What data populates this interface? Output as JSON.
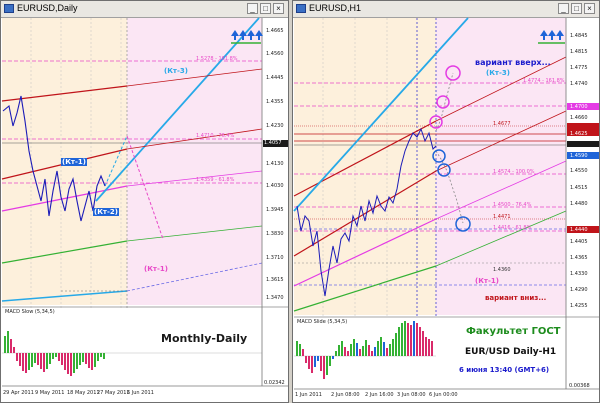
{
  "left_window": {
    "title": "EURUSD,Daily",
    "price_axis": [
      "1.4665",
      "1.4560",
      "1.4445",
      "1.4355",
      "1.4230",
      "1.4130",
      "1.4030",
      "1.3945",
      "1.3830",
      "1.3710",
      "1.3615",
      "1.3470"
    ],
    "current_price": "1.4057",
    "fib_labels": [
      "1.5278 - 161.8%",
      "1.4710 - 76.4%",
      "1.4359 - 61.8%"
    ],
    "wave_labels": {
      "kt3": "(Кт-3)",
      "kt1_top": "(Кт-1)",
      "kt2": "(Кт-2)",
      "kt1_bottom": "(Кт-1)"
    },
    "macd_label": "MACD Slow (5,34,5)",
    "macd_axis": [
      "0.02342"
    ],
    "panel_text": "Monthly-Daily",
    "date_axis": [
      "29 Apr 2011",
      "9 May 2011",
      "18 May 2011",
      "27 May 2011",
      "6 Jun 2011"
    ]
  },
  "right_window": {
    "title": "EURUSD,H1",
    "price_axis": [
      "1.4845",
      "1.4815",
      "1.4775",
      "1.4740",
      "1.4700",
      "1.4660",
      "1.4625",
      "1.4590",
      "1.4550",
      "1.4515",
      "1.4480",
      "1.4440",
      "1.4405",
      "1.4365",
      "1.4330",
      "1.4290",
      "1.4255"
    ],
    "fib_labels": [
      "1.4774 - 161.8%",
      "1.4677",
      "1.4574 - 100.0%",
      "1.4500 - 76.4%",
      "1.4471",
      "1.4416 - 61.8%",
      "1.4360"
    ],
    "variant_up": "вариант вверх...",
    "kt3": "(Кт-3)",
    "variant_down": "вариант вниз...",
    "kt1": "(Кт-1)",
    "macd_label": "MACD Slide (5,34,5)",
    "macd_axis": [
      "0.00368"
    ],
    "faculty": "Факультет ГОСТ",
    "pair": "EUR/USD Daily-H1",
    "datetime": "6 июня 13:40 (GMT+6)",
    "date_axis": [
      "1 Jun 2011",
      "2 Jun 08:00",
      "2 Jun 16:00",
      "3 Jun 08:00",
      "6 Jun 00:00"
    ]
  },
  "colors": {
    "pink_zone": "#fbe6f4",
    "forecast_zone": "#fff7c8",
    "channel_red": "#c0141a",
    "trend_blue": "#27a9e8",
    "green": "#34b134",
    "magenta": "#e43be4",
    "fib_pink": "#e848c8"
  }
}
